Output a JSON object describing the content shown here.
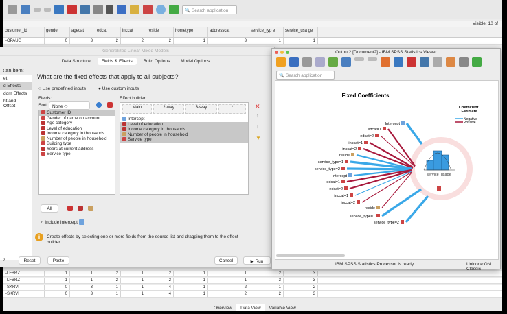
{
  "editor": {
    "search_placeholder": "Search application",
    "visible_text": "Visible: 10 of",
    "columns": [
      "customer_id",
      "gender",
      "agecat",
      "edcat",
      "inccat",
      "reside",
      "hometype",
      "addresscat",
      "service_typ e",
      "service_usa ge"
    ],
    "rows": [
      [
        "-OPAUG",
        "0",
        "3",
        "2",
        "2",
        "2",
        "1",
        "3",
        "1",
        "1"
      ],
      [
        "-LFBRZ",
        "1",
        "1",
        "2",
        "1",
        "2",
        "1",
        "1",
        "2",
        "3"
      ],
      [
        "-LFBRZ",
        "1",
        "1",
        "2",
        "1",
        "2",
        "1",
        "1",
        "3",
        "3"
      ],
      [
        "-SKRVI",
        "0",
        "3",
        "1",
        "1",
        "4",
        "1",
        "2",
        "1",
        "2"
      ],
      [
        "-SKRVI",
        "0",
        "3",
        "1",
        "1",
        "4",
        "1",
        "2",
        "2",
        "3"
      ]
    ],
    "bottom_tabs": [
      "Overview",
      "Data View",
      "Variable View"
    ],
    "active_bottom_tab": "Data View"
  },
  "dialog": {
    "title": "Generalized Linear Mixed Models",
    "tabs": [
      "Data Structure",
      "Fields & Effects",
      "Build Options",
      "Model Options"
    ],
    "active_tab": "Fields & Effects",
    "select_label": "t an item:",
    "sidebar": [
      "et",
      "d Effects",
      "dom Effects",
      "ht and Offset"
    ],
    "question": "What are the fixed effects that apply to all subjects?",
    "radio_predefined": "Use predefined inputs",
    "radio_custom": "Use custom inputs",
    "fields_label": "Fields:",
    "sort_label": "Sort:",
    "sort_value": "None",
    "fields": [
      "Customer ID",
      "Gender of name on account",
      "Age category",
      "Level of education",
      "Income category in thousands",
      "Number of people in household",
      "Building type",
      "Years at current address",
      "Service type"
    ],
    "effect_builder_label": "Effect builder:",
    "builder_tabs": [
      "Main",
      "2-way",
      "3-way",
      "*"
    ],
    "effects": [
      "Intercept",
      "Level of education",
      "Income category in thousands",
      "Number of people in household",
      "Service type"
    ],
    "all_button": "All",
    "include_intercept": "Include intercept",
    "info_text": "Create effects by selecting one or more fields from the source list and dragging them to the effect builder.",
    "buttons": {
      "help": "?",
      "reset": "Reset",
      "paste": "Paste",
      "cancel": "Cancel",
      "run": "Run"
    }
  },
  "viewer": {
    "title": "Output2 [Document2] - IBM SPSS Statistics Viewer",
    "search_placeholder": "Search application",
    "status": "IBM SPSS Statistics Processor is ready",
    "encoding": "Unicode:ON Classic",
    "chart": {
      "title": "Fixed Coefficients",
      "legend_title": "Coefficient Estimate",
      "legend": [
        {
          "name": "Negative",
          "color": "#3aa8e8"
        },
        {
          "name": "Positive",
          "color": "#a8193c"
        }
      ],
      "target": "service_usage",
      "effects": [
        {
          "label": "Intercept",
          "sign": "Negative",
          "strength": 3
        },
        {
          "label": "edcat=1",
          "sign": "Positive",
          "strength": 2
        },
        {
          "label": "edcat=2",
          "sign": "Positive",
          "strength": 1
        },
        {
          "label": "inccat=1",
          "sign": "Positive",
          "strength": 2
        },
        {
          "label": "inccat=2",
          "sign": "Positive",
          "strength": 2
        },
        {
          "label": "reside",
          "sign": "Negative",
          "strength": 2
        },
        {
          "label": "service_type=1",
          "sign": "Negative",
          "strength": 3
        },
        {
          "label": "service_type=2",
          "sign": "Negative",
          "strength": 3
        },
        {
          "label": "Intercept",
          "sign": "Negative",
          "strength": 2
        },
        {
          "label": "edcat=1",
          "sign": "Positive",
          "strength": 2
        },
        {
          "label": "edcat=2",
          "sign": "Positive",
          "strength": 2
        },
        {
          "label": "inccat=1",
          "sign": "Negative",
          "strength": 1
        },
        {
          "label": "inccat=2",
          "sign": "Positive",
          "strength": 1
        },
        {
          "label": "reside",
          "sign": "Positive",
          "strength": 1
        },
        {
          "label": "service_type=1",
          "sign": "Negative",
          "strength": 3
        },
        {
          "label": "service_type=2",
          "sign": "Negative",
          "strength": 3
        }
      ]
    }
  }
}
